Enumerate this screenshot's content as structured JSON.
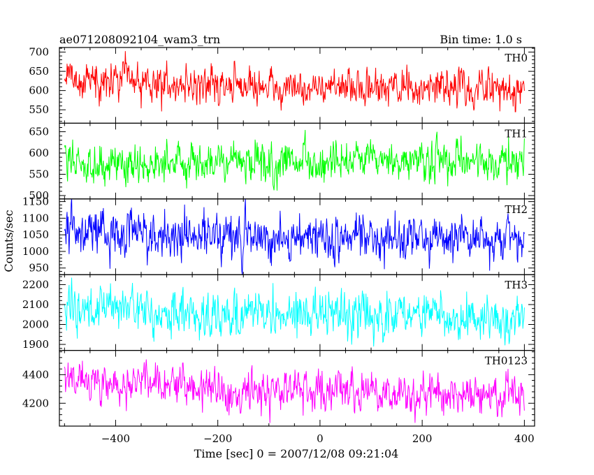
{
  "header": {
    "title": "ae071208092104_wam3_trn",
    "bin_time": "Bin time: 1.0 s"
  },
  "axes": {
    "xlabel": "Time [sec] 0 = 2007/12/08 09:21:04",
    "ylabel": "Counts/sec"
  },
  "chart_data": {
    "type": "line",
    "title": "ae071208092104_wam3_trn",
    "xlabel": "Time [sec] 0 = 2007/12/08 09:21:04",
    "ylabel": "Counts/sec",
    "xlim": [
      -510,
      420
    ],
    "x_ticks": [
      -400,
      -200,
      0,
      200,
      400
    ],
    "x_start": -500,
    "x_end": 400,
    "x_step": 1.0,
    "grid": false,
    "panels": [
      {
        "name": "TH0",
        "color": "#ff0000",
        "ylim": [
          515,
          712
        ],
        "y_ticks": [
          550,
          600,
          650,
          700
        ],
        "mean": 612,
        "noise": 24,
        "trend": [
          [
            -500,
            632
          ],
          [
            -250,
            615
          ],
          [
            0,
            608
          ],
          [
            250,
            605
          ],
          [
            400,
            608
          ]
        ]
      },
      {
        "name": "TH1",
        "color": "#00ff00",
        "ylim": [
          492,
          670
        ],
        "y_ticks": [
          500,
          550,
          600,
          650
        ],
        "mean": 578,
        "noise": 24,
        "trend": [
          [
            -500,
            578
          ],
          [
            0,
            577
          ],
          [
            400,
            578
          ]
        ]
      },
      {
        "name": "TH2",
        "color": "#0000ff",
        "ylim": [
          930,
          1158
        ],
        "y_ticks": [
          950,
          1000,
          1050,
          1100,
          1150
        ],
        "mean": 1045,
        "noise": 35,
        "trend": [
          [
            -500,
            1065
          ],
          [
            -200,
            1045
          ],
          [
            100,
            1040
          ],
          [
            400,
            1040
          ]
        ]
      },
      {
        "name": "TH3",
        "color": "#00ffff",
        "ylim": [
          1870,
          2250
        ],
        "y_ticks": [
          1900,
          2000,
          2100,
          2200
        ],
        "mean": 2050,
        "noise": 55,
        "trend": [
          [
            -500,
            2080
          ],
          [
            -200,
            2050
          ],
          [
            100,
            2045
          ],
          [
            400,
            2040
          ]
        ]
      },
      {
        "name": "TH0123",
        "color": "#ff00ff",
        "ylim": [
          4040,
          4570
        ],
        "y_ticks": [
          4200,
          4400
        ],
        "mean": 4300,
        "noise": 70,
        "trend": [
          [
            -500,
            4360
          ],
          [
            -300,
            4320
          ],
          [
            0,
            4285
          ],
          [
            200,
            4255
          ],
          [
            400,
            4265
          ]
        ]
      }
    ]
  }
}
